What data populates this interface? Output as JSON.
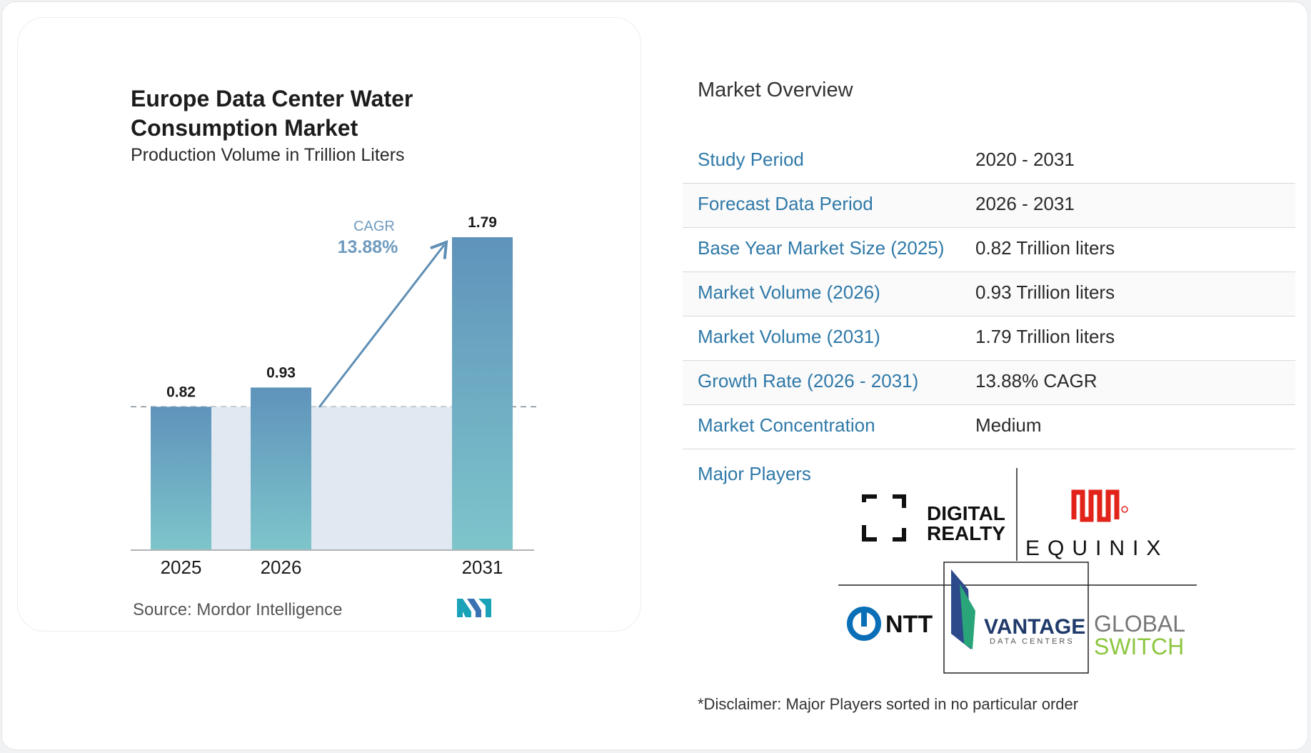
{
  "chart": {
    "title": "Europe Data Center Water Consumption Market",
    "subtitle": "Production Volume in Trillion Liters",
    "source_label": "Source:",
    "source_name": "Mordor Intelligence",
    "cagr_label": "CAGR",
    "cagr_value": "13.88%"
  },
  "chart_data": {
    "type": "bar",
    "categories": [
      "2025",
      "2026",
      "2031"
    ],
    "values": [
      0.82,
      0.93,
      1.79
    ],
    "value_labels": [
      "0.82",
      "0.93",
      "1.79"
    ],
    "title": "Europe Data Center Water Consumption Market",
    "subtitle": "Production Volume in Trillion Liters",
    "xlabel": "",
    "ylabel": "",
    "ylim": [
      0,
      1.79
    ],
    "grid": false,
    "annotation": "CAGR 13.88%"
  },
  "overview": {
    "title": "Market Overview",
    "rows": [
      {
        "key": "Study Period",
        "value": "2020 - 2031"
      },
      {
        "key": "Forecast Data Period",
        "value": "2026 - 2031"
      },
      {
        "key": "Base Year Market Size (2025)",
        "value": "0.82 Trillion liters"
      },
      {
        "key": "Market Volume (2026)",
        "value": "0.93 Trillion liters"
      },
      {
        "key": "Market Volume (2031)",
        "value": "1.79 Trillion liters"
      },
      {
        "key": "Growth Rate (2026 - 2031)",
        "value": "13.88% CAGR"
      },
      {
        "key": "Market Concentration",
        "value": "Medium"
      }
    ],
    "players_label": "Major Players",
    "players": {
      "digital_realty": [
        "DIGITAL",
        "REALTY"
      ],
      "equinix": "EQUINIX",
      "ntt": "NTT",
      "vantage": "VANTAGE",
      "vantage_sub": "DATA CENTERS",
      "global_switch": [
        "GL",
        "BAL",
        "SWITCH"
      ]
    },
    "disclaimer": "*Disclaimer: Major Players sorted in no particular order"
  },
  "colors": {
    "bar_top": "#5f93bb",
    "bar_bottom": "#7ec5cb",
    "accent_blue": "#2f79a8",
    "area_fill": "#e0e8f1",
    "global_switch_green": "#8dc63f",
    "equinix_red": "#e2231a"
  }
}
